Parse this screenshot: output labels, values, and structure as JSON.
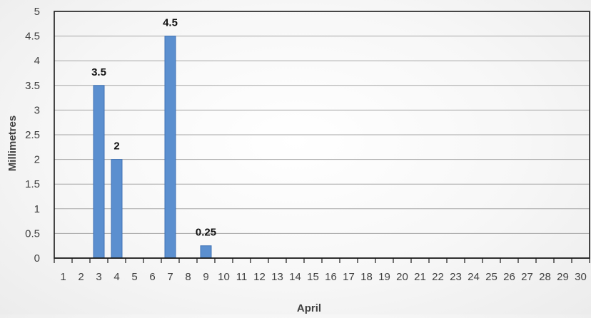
{
  "chart_data": {
    "type": "bar",
    "title": "",
    "xlabel": "April",
    "ylabel": "Millimetres",
    "ylim": [
      0,
      5
    ],
    "yticks": [
      "0",
      "0.5",
      "1",
      "1.5",
      "2",
      "2.5",
      "3",
      "3.5",
      "4",
      "4.5",
      "5"
    ],
    "grid": true,
    "legend": "none",
    "categories": [
      "1",
      "2",
      "3",
      "4",
      "5",
      "6",
      "7",
      "8",
      "9",
      "10",
      "11",
      "12",
      "13",
      "14",
      "15",
      "16",
      "17",
      "18",
      "19",
      "20",
      "21",
      "22",
      "23",
      "24",
      "25",
      "26",
      "27",
      "28",
      "29",
      "30"
    ],
    "values": [
      0,
      0,
      3.5,
      2,
      0,
      0,
      4.5,
      0,
      0.25,
      0,
      0,
      0,
      0,
      0,
      0,
      0,
      0,
      0,
      0,
      0,
      0,
      0,
      0,
      0,
      0,
      0,
      0,
      0,
      0,
      0
    ],
    "data_labels": {
      "3": "3.5",
      "4": "2",
      "7": "4.5",
      "9": "0.25"
    },
    "bar_color": "#5b8fcf",
    "bar_edge_color": "#3f72b5",
    "grid_color": "#a6a6a6"
  }
}
